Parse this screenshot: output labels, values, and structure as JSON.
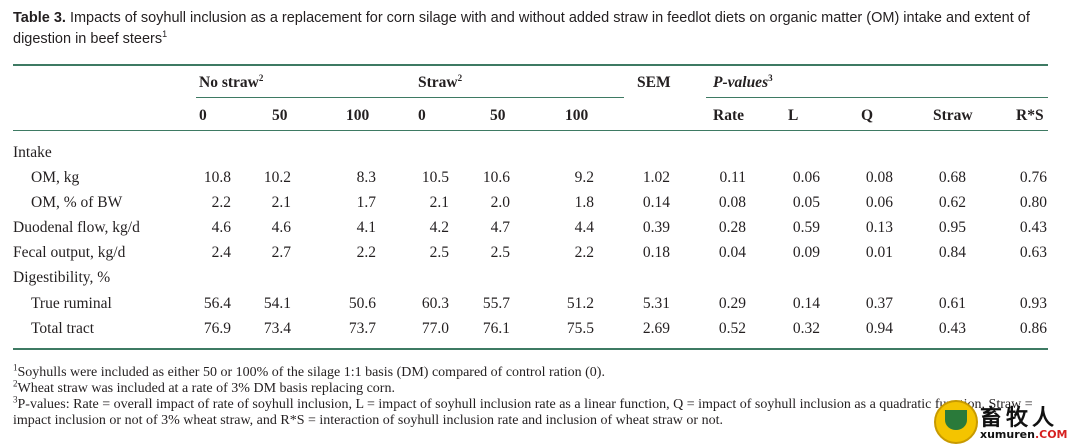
{
  "caption": {
    "label": "Table 3.",
    "text": " Impacts of soyhull inclusion as a replacement for corn silage with and without added straw in feedlot diets on organic matter (OM) intake and extent of digestion in beef steers",
    "sup": "1"
  },
  "header": {
    "no_straw": "No straw",
    "no_straw_sup": "2",
    "straw": "Straw",
    "straw_sup": "2",
    "sem": "SEM",
    "pvalues": "P-values",
    "pvalues_sup": "3",
    "sub": [
      "0",
      "50",
      "100",
      "0",
      "50",
      "100"
    ],
    "p_sub": [
      "Rate",
      "L",
      "Q",
      "Straw",
      "R*S"
    ]
  },
  "rows": [
    {
      "label": "Intake",
      "values": []
    },
    {
      "label": "OM, kg",
      "values": [
        "10.8",
        "10.2",
        "8.3",
        "10.5",
        "10.6",
        "9.2",
        "1.02",
        "0.11",
        "0.06",
        "0.08",
        "0.68",
        "0.76"
      ]
    },
    {
      "label": "OM, % of BW",
      "values": [
        "2.2",
        "2.1",
        "1.7",
        "2.1",
        "2.0",
        "1.8",
        "0.14",
        "0.08",
        "0.05",
        "0.06",
        "0.62",
        "0.80"
      ]
    },
    {
      "label": "Duodenal flow, kg/d",
      "values": [
        "4.6",
        "4.6",
        "4.1",
        "4.2",
        "4.7",
        "4.4",
        "0.39",
        "0.28",
        "0.59",
        "0.13",
        "0.95",
        "0.43"
      ]
    },
    {
      "label": "Fecal output, kg/d",
      "values": [
        "2.4",
        "2.7",
        "2.2",
        "2.5",
        "2.5",
        "2.2",
        "0.18",
        "0.04",
        "0.09",
        "0.01",
        "0.84",
        "0.63"
      ]
    },
    {
      "label": "Digestibility, %",
      "values": []
    },
    {
      "label": "True ruminal",
      "values": [
        "56.4",
        "54.1",
        "50.6",
        "60.3",
        "55.7",
        "51.2",
        "5.31",
        "0.29",
        "0.14",
        "0.37",
        "0.61",
        "0.93"
      ]
    },
    {
      "label": "Total tract",
      "values": [
        "76.9",
        "73.4",
        "73.7",
        "77.0",
        "76.1",
        "75.5",
        "2.69",
        "0.52",
        "0.32",
        "0.94",
        "0.43",
        "0.86"
      ]
    }
  ],
  "footnotes": [
    {
      "sup": "1",
      "text": "Soyhulls were included as either 50 or 100% of the silage 1:1 basis (DM) compared of control ration (0)."
    },
    {
      "sup": "2",
      "text": "Wheat straw was included at a rate of 3% DM basis replacing corn."
    },
    {
      "sup": "3",
      "text": "P-values: Rate = overall impact of rate of soyhull inclusion, L = impact of soyhull inclusion rate as a linear function, Q = impact of soyhull inclusion as a quadratic function, Straw = impact inclusion or not of 3% wheat straw, and R*S = interaction of soyhull inclusion rate and inclusion of wheat straw or not."
    }
  ],
  "watermark": {
    "chinese": "畜牧人",
    "site": "xumuren",
    "tld": ".COM"
  }
}
